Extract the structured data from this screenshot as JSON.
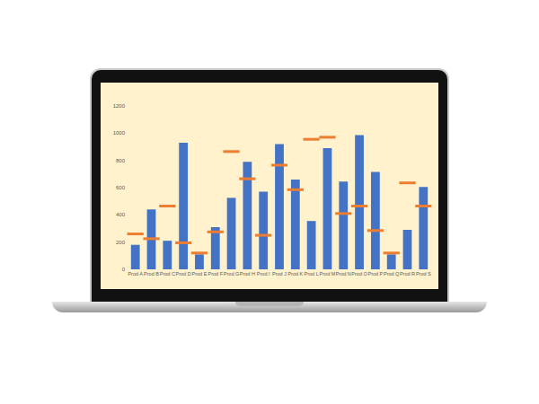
{
  "chart_data": {
    "type": "bar",
    "categories": [
      "Prod A",
      "Prod B",
      "Prod C",
      "Prod D",
      "Prod E",
      "Prod F",
      "Prod G",
      "Prod H",
      "Prod I",
      "Prod J",
      "Prod K",
      "Prod L",
      "Prod M",
      "Prod N",
      "Prod O",
      "Prod P",
      "Prod Q",
      "Prod R",
      "Prod S"
    ],
    "series": [
      {
        "type": "bar",
        "color": "#4472c4",
        "values": [
          180,
          440,
          210,
          930,
          110,
          310,
          525,
          790,
          570,
          920,
          660,
          355,
          890,
          645,
          985,
          715,
          110,
          290,
          605
        ]
      },
      {
        "type": "scatter",
        "marker": "dash",
        "color": "#ed7d31",
        "values": [
          260,
          225,
          465,
          195,
          120,
          275,
          865,
          665,
          250,
          765,
          585,
          955,
          970,
          410,
          465,
          285,
          120,
          635,
          465
        ]
      }
    ],
    "ylim": [
      0,
      1200
    ],
    "yticks": [
      0,
      200,
      400,
      600,
      800,
      1000,
      1200
    ],
    "grid": false
  }
}
